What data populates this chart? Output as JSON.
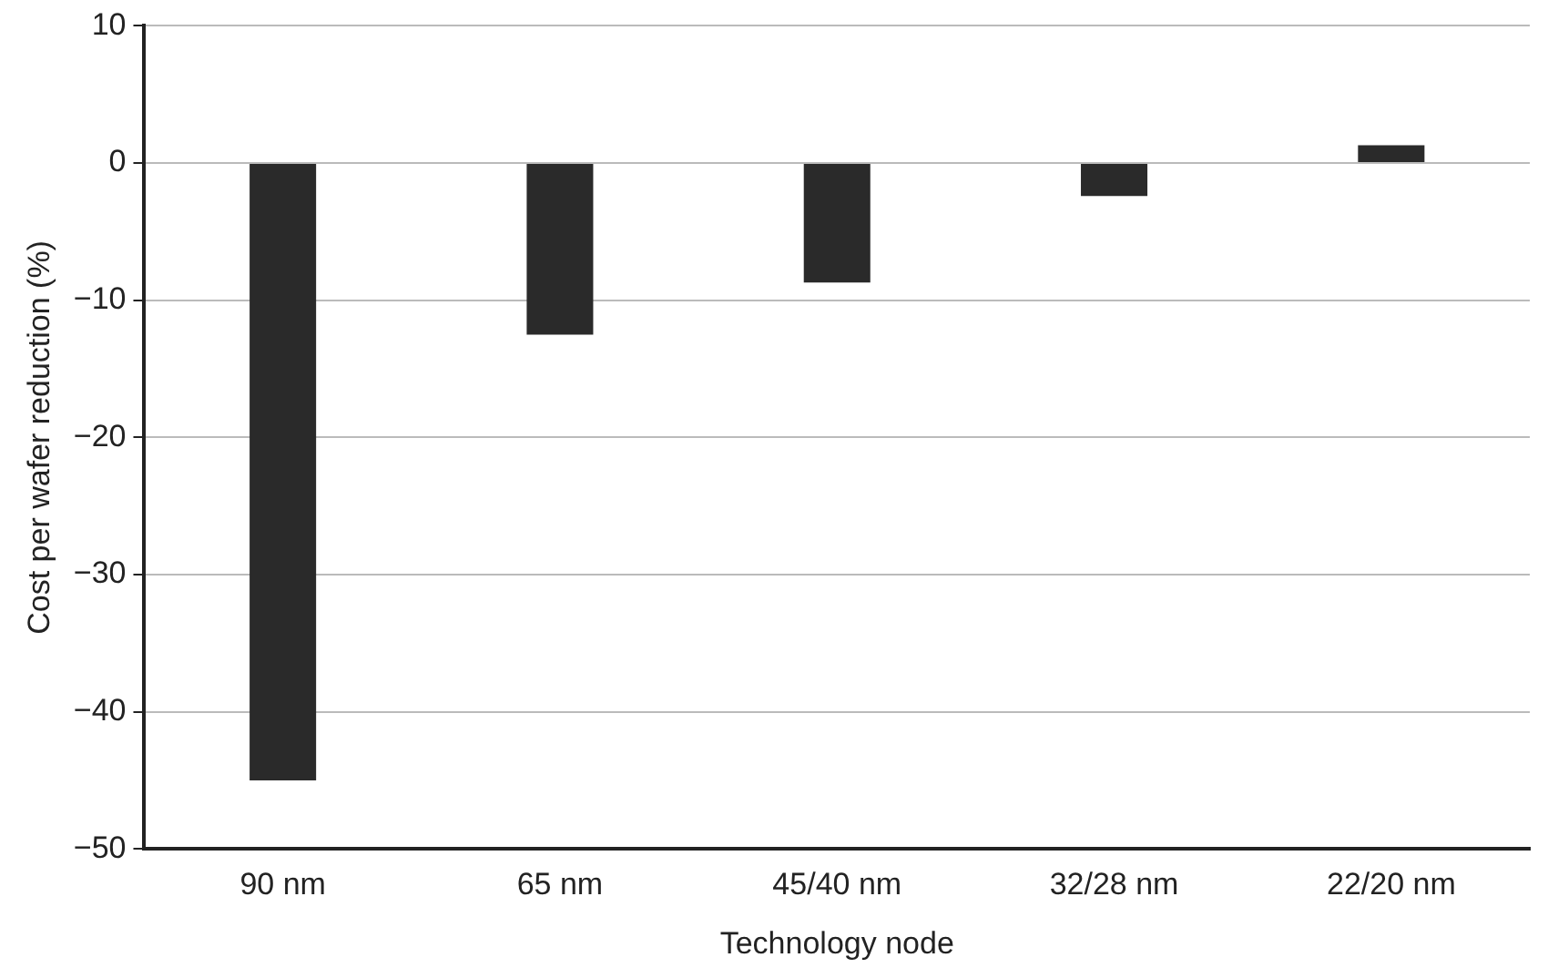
{
  "chart_data": {
    "type": "bar",
    "xlabel": "Technology node",
    "ylabel": "Cost per wafer reduction (%)",
    "categories": [
      "90 nm",
      "65 nm",
      "45/40 nm",
      "32/28 nm",
      "22/20 nm"
    ],
    "values": [
      -45,
      -12.5,
      -8.7,
      -2.4,
      1.3
    ],
    "color": "#2a2a2a",
    "ylim": [
      -50,
      10
    ],
    "yticks": [
      {
        "value": -50,
        "label": "−50"
      },
      {
        "value": -40,
        "label": "−40"
      },
      {
        "value": -30,
        "label": "−30"
      },
      {
        "value": -20,
        "label": "−20"
      },
      {
        "value": -10,
        "label": "−10"
      },
      0,
      10
    ],
    "grid": "y"
  }
}
